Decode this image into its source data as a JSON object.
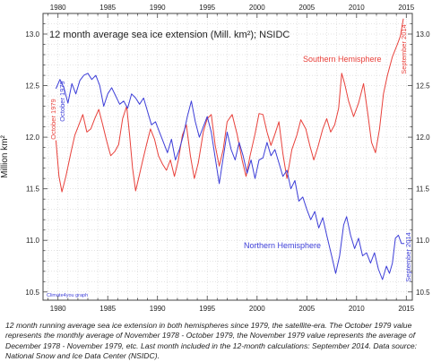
{
  "chart_data": {
    "type": "line",
    "title": "12 month average sea ice extension (Mill. km²); NSIDC",
    "ylabel": "Million km²",
    "xlabel": "",
    "xlim": [
      1978.5,
      2015.6
    ],
    "ylim": [
      10.42,
      13.2
    ],
    "x_ticks": [
      "1980",
      "1985",
      "1990",
      "1995",
      "2000",
      "2005",
      "2010",
      "2015"
    ],
    "y_ticks": [
      "10.5",
      "11.0",
      "11.5",
      "12.0",
      "12.5",
      "13.0"
    ],
    "grid": true,
    "credit": "Climate4you graph",
    "series": [
      {
        "name": "Southern Hemisphere",
        "color": "#e8413b",
        "start_label": "October 1979",
        "end_label": "September 2014",
        "points": [
          [
            1979.8,
            11.97
          ],
          [
            1980.1,
            11.62
          ],
          [
            1980.4,
            11.47
          ],
          [
            1980.8,
            11.62
          ],
          [
            1981.3,
            11.85
          ],
          [
            1981.7,
            12.02
          ],
          [
            1982.1,
            12.12
          ],
          [
            1982.5,
            12.22
          ],
          [
            1982.9,
            12.05
          ],
          [
            1983.3,
            12.08
          ],
          [
            1983.7,
            12.18
          ],
          [
            1984.1,
            12.27
          ],
          [
            1984.5,
            12.12
          ],
          [
            1984.9,
            11.96
          ],
          [
            1985.3,
            11.82
          ],
          [
            1985.7,
            11.86
          ],
          [
            1986.1,
            11.93
          ],
          [
            1986.5,
            12.18
          ],
          [
            1986.9,
            12.3
          ],
          [
            1987.2,
            12.02
          ],
          [
            1987.5,
            11.7
          ],
          [
            1987.8,
            11.48
          ],
          [
            1988.1,
            11.6
          ],
          [
            1988.5,
            11.77
          ],
          [
            1988.9,
            11.93
          ],
          [
            1989.3,
            12.08
          ],
          [
            1989.7,
            11.98
          ],
          [
            1990.1,
            11.82
          ],
          [
            1990.5,
            11.74
          ],
          [
            1990.9,
            11.68
          ],
          [
            1991.3,
            11.78
          ],
          [
            1991.7,
            11.62
          ],
          [
            1992.1,
            11.78
          ],
          [
            1992.5,
            12.02
          ],
          [
            1992.9,
            12.12
          ],
          [
            1993.3,
            11.82
          ],
          [
            1993.7,
            11.6
          ],
          [
            1994.1,
            11.75
          ],
          [
            1994.6,
            12.05
          ],
          [
            1995.0,
            12.18
          ],
          [
            1995.4,
            12.22
          ],
          [
            1995.8,
            11.92
          ],
          [
            1996.2,
            11.72
          ],
          [
            1996.6,
            11.88
          ],
          [
            1997.0,
            12.15
          ],
          [
            1997.5,
            12.22
          ],
          [
            1998.0,
            12.03
          ],
          [
            1998.5,
            11.78
          ],
          [
            1998.9,
            11.62
          ],
          [
            1999.3,
            11.82
          ],
          [
            1999.8,
            12.03
          ],
          [
            2000.2,
            12.23
          ],
          [
            2000.6,
            12.22
          ],
          [
            2001.0,
            12.05
          ],
          [
            2001.4,
            11.92
          ],
          [
            2001.8,
            12.03
          ],
          [
            2002.2,
            12.15
          ],
          [
            2002.6,
            11.84
          ],
          [
            2003.0,
            11.6
          ],
          [
            2003.5,
            11.88
          ],
          [
            2004.0,
            12.02
          ],
          [
            2004.4,
            12.17
          ],
          [
            2004.9,
            12.08
          ],
          [
            2005.3,
            11.92
          ],
          [
            2005.7,
            11.78
          ],
          [
            2006.1,
            11.9
          ],
          [
            2006.6,
            12.08
          ],
          [
            2007.0,
            12.18
          ],
          [
            2007.4,
            12.05
          ],
          [
            2007.8,
            12.12
          ],
          [
            2008.2,
            12.28
          ],
          [
            2008.5,
            12.62
          ],
          [
            2008.8,
            12.52
          ],
          [
            2009.2,
            12.35
          ],
          [
            2009.7,
            12.2
          ],
          [
            2010.2,
            12.33
          ],
          [
            2010.7,
            12.52
          ],
          [
            2011.1,
            12.25
          ],
          [
            2011.5,
            11.95
          ],
          [
            2011.9,
            11.85
          ],
          [
            2012.3,
            12.08
          ],
          [
            2012.7,
            12.42
          ],
          [
            2013.1,
            12.6
          ],
          [
            2013.6,
            12.78
          ],
          [
            2014.1,
            12.9
          ],
          [
            2014.4,
            12.98
          ],
          [
            2014.7,
            13.15
          ]
        ]
      },
      {
        "name": "Northern Hemisphere",
        "color": "#3d3ed8",
        "start_label": "October 1979",
        "end_label": "September 2014",
        "points": [
          [
            1979.8,
            12.47
          ],
          [
            1980.2,
            12.56
          ],
          [
            1980.6,
            12.48
          ],
          [
            1981.0,
            12.33
          ],
          [
            1981.4,
            12.52
          ],
          [
            1981.8,
            12.42
          ],
          [
            1982.2,
            12.55
          ],
          [
            1982.6,
            12.6
          ],
          [
            1983.0,
            12.62
          ],
          [
            1983.4,
            12.56
          ],
          [
            1983.8,
            12.6
          ],
          [
            1984.2,
            12.5
          ],
          [
            1984.6,
            12.3
          ],
          [
            1985.0,
            12.42
          ],
          [
            1985.4,
            12.48
          ],
          [
            1985.8,
            12.4
          ],
          [
            1986.2,
            12.32
          ],
          [
            1986.6,
            12.35
          ],
          [
            1987.0,
            12.28
          ],
          [
            1987.4,
            12.42
          ],
          [
            1987.8,
            12.38
          ],
          [
            1988.2,
            12.32
          ],
          [
            1988.6,
            12.38
          ],
          [
            1989.0,
            12.25
          ],
          [
            1989.4,
            12.12
          ],
          [
            1989.8,
            12.15
          ],
          [
            1990.2,
            12.05
          ],
          [
            1990.6,
            11.95
          ],
          [
            1991.0,
            11.85
          ],
          [
            1991.4,
            11.98
          ],
          [
            1991.8,
            11.78
          ],
          [
            1992.2,
            11.88
          ],
          [
            1992.6,
            12.02
          ],
          [
            1993.0,
            12.2
          ],
          [
            1993.4,
            12.35
          ],
          [
            1993.8,
            12.15
          ],
          [
            1994.2,
            12.0
          ],
          [
            1994.6,
            12.1
          ],
          [
            1995.0,
            12.2
          ],
          [
            1995.4,
            12.05
          ],
          [
            1995.8,
            11.8
          ],
          [
            1996.2,
            11.55
          ],
          [
            1996.6,
            11.8
          ],
          [
            1997.0,
            12.05
          ],
          [
            1997.4,
            11.88
          ],
          [
            1997.8,
            11.78
          ],
          [
            1998.2,
            11.95
          ],
          [
            1998.6,
            11.82
          ],
          [
            1999.0,
            11.65
          ],
          [
            1999.4,
            11.78
          ],
          [
            1999.8,
            11.6
          ],
          [
            2000.2,
            11.78
          ],
          [
            2000.6,
            11.8
          ],
          [
            2001.0,
            11.95
          ],
          [
            2001.4,
            11.82
          ],
          [
            2001.8,
            11.88
          ],
          [
            2002.2,
            11.75
          ],
          [
            2002.6,
            11.62
          ],
          [
            2003.0,
            11.68
          ],
          [
            2003.4,
            11.5
          ],
          [
            2003.8,
            11.58
          ],
          [
            2004.2,
            11.38
          ],
          [
            2004.6,
            11.42
          ],
          [
            2005.0,
            11.3
          ],
          [
            2005.4,
            11.2
          ],
          [
            2005.8,
            11.28
          ],
          [
            2006.2,
            11.12
          ],
          [
            2006.6,
            11.22
          ],
          [
            2007.0,
            11.05
          ],
          [
            2007.5,
            10.85
          ],
          [
            2007.9,
            10.68
          ],
          [
            2008.3,
            10.85
          ],
          [
            2008.7,
            11.15
          ],
          [
            2009.0,
            11.23
          ],
          [
            2009.4,
            11.05
          ],
          [
            2009.8,
            10.92
          ],
          [
            2010.2,
            11.02
          ],
          [
            2010.6,
            10.85
          ],
          [
            2011.0,
            10.88
          ],
          [
            2011.4,
            10.78
          ],
          [
            2011.8,
            10.88
          ],
          [
            2012.2,
            10.72
          ],
          [
            2012.6,
            10.62
          ],
          [
            2013.0,
            10.75
          ],
          [
            2013.3,
            10.68
          ],
          [
            2013.6,
            10.78
          ],
          [
            2013.9,
            11.02
          ],
          [
            2014.2,
            11.05
          ],
          [
            2014.5,
            10.97
          ],
          [
            2014.8,
            10.97
          ]
        ]
      }
    ]
  },
  "caption": "12 month running average sea ice extension in both hemispheres since 1979, the satellite-era. The October 1979 value represents the monthly average of November 1978 - October 1979, the November 1979 value represents the average of December 1978 - November 1979, etc. Last month included in the 12-month calculations: September 2014.  Data source: National Snow and Ice Data Center (NSIDC)."
}
